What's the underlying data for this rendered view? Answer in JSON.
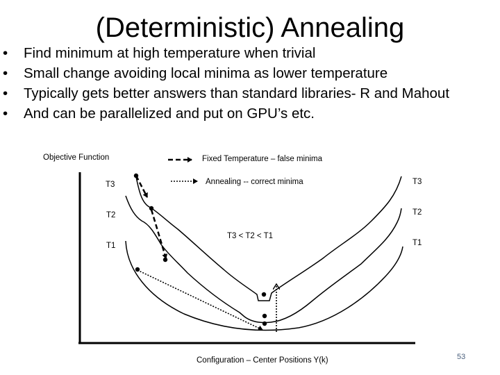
{
  "slide": {
    "title": "(Deterministic) Annealing",
    "bullets": [
      "Find minimum at high temperature when trivial",
      "Small change avoiding local minima as lower temperature",
      "Typically gets better answers than standard libraries- R and Mahout",
      "And can be parallelized and put on GPU’s etc."
    ],
    "page_number": "53"
  },
  "diagram": {
    "y_axis_label": "Objective Function",
    "x_axis_label": "Configuration – Center Positions Y(k)",
    "legend": {
      "fixed_temperature": "Fixed Temperature – false minima",
      "annealing": "Annealing -- correct minima"
    },
    "curve_labels_left": [
      "T3",
      "T2",
      "T1"
    ],
    "curve_labels_right": [
      "T3",
      "T2",
      "T1"
    ],
    "relation": "T3 < T2 < T1"
  }
}
